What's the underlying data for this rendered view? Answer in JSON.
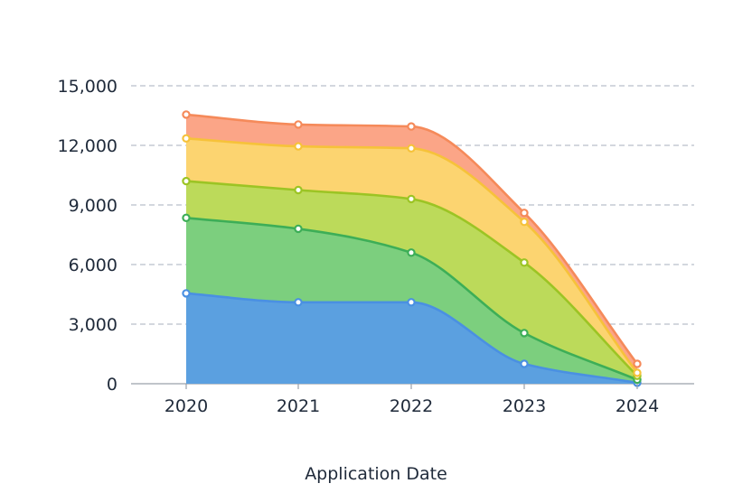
{
  "chart_data": {
    "type": "area",
    "stacked": true,
    "categories": [
      "2020",
      "2021",
      "2022",
      "2023",
      "2024"
    ],
    "xlabel": "Application Date",
    "ylabel": "",
    "ylim": [
      0,
      15000
    ],
    "yticks": [
      0,
      3000,
      6000,
      9000,
      12000,
      15000
    ],
    "ytick_labels": [
      "0",
      "3,000",
      "6,000",
      "9,000",
      "12,000",
      "15,000"
    ],
    "grid": true,
    "series": [
      {
        "values": [
          4550,
          4100,
          4100,
          1000,
          50
        ],
        "color": "#4a90e2",
        "fill": "#5ba0e0"
      },
      {
        "values": [
          3800,
          3700,
          2500,
          1550,
          150
        ],
        "color": "#3dae57",
        "fill": "#7ccf7e"
      },
      {
        "values": [
          1850,
          1950,
          2700,
          3550,
          200
        ],
        "color": "#9cc424",
        "fill": "#bcda5a"
      },
      {
        "values": [
          2150,
          2200,
          2550,
          2050,
          150
        ],
        "color": "#f6c23a",
        "fill": "#fcd470"
      },
      {
        "values": [
          1200,
          1100,
          1100,
          450,
          450
        ],
        "color": "#f58a5a",
        "fill": "#fba587"
      }
    ]
  }
}
